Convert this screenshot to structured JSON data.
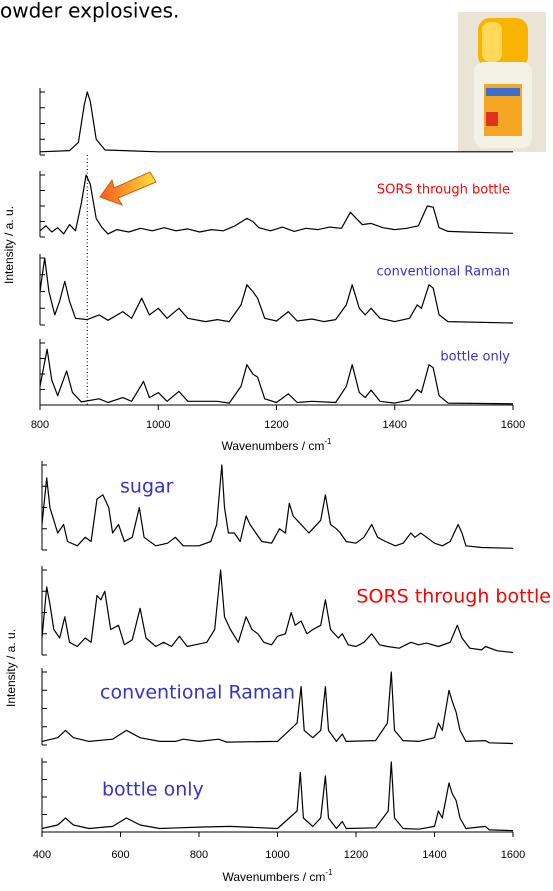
{
  "header": "owder explosives.",
  "chart_data": [
    {
      "type": "line",
      "xlabel": "Wavenumbers / cm",
      "xlabel_superscript": "-1",
      "ylabel": "Intensity / a. u.",
      "xlim": [
        800,
        1600
      ],
      "xticks": [
        800,
        1000,
        1200,
        1400,
        1600
      ],
      "ylim": [
        0,
        1
      ],
      "yticks": [
        0,
        0.25,
        0.5,
        0.75,
        1
      ],
      "marker_x": 880,
      "series": [
        {
          "color": "#000000",
          "x": [
            800,
            850,
            865,
            875,
            880,
            885,
            895,
            910,
            1000,
            1600
          ],
          "values": [
            0.05,
            0.07,
            0.2,
            0.8,
            1.0,
            0.85,
            0.25,
            0.08,
            0.05,
            0.05
          ]
        },
        {
          "name": "SORS through bottle",
          "color": "#000000",
          "label_color": "#ff0000",
          "x": [
            800,
            810,
            820,
            830,
            840,
            850,
            860,
            870,
            878,
            885,
            895,
            905,
            915,
            930,
            950,
            970,
            990,
            1010,
            1030,
            1050,
            1070,
            1090,
            1110,
            1130,
            1150,
            1160,
            1170,
            1190,
            1210,
            1230,
            1250,
            1270,
            1290,
            1310,
            1325,
            1335,
            1345,
            1360,
            1380,
            1400,
            1420,
            1440,
            1455,
            1465,
            1475,
            1490,
            1520,
            1560,
            1600
          ],
          "values": [
            0.1,
            0.18,
            0.08,
            0.15,
            0.05,
            0.2,
            0.1,
            0.55,
            1.0,
            0.85,
            0.3,
            0.15,
            0.05,
            0.12,
            0.08,
            0.14,
            0.1,
            0.15,
            0.1,
            0.13,
            0.08,
            0.12,
            0.1,
            0.18,
            0.3,
            0.25,
            0.15,
            0.1,
            0.16,
            0.09,
            0.14,
            0.12,
            0.16,
            0.14,
            0.4,
            0.3,
            0.2,
            0.22,
            0.15,
            0.12,
            0.14,
            0.18,
            0.5,
            0.48,
            0.15,
            0.09,
            0.08,
            0.07,
            0.06
          ]
        },
        {
          "name": "conventional Raman",
          "color": "#000000",
          "label_color": "#3333cc",
          "x": [
            800,
            808,
            815,
            825,
            833,
            842,
            850,
            860,
            880,
            900,
            915,
            940,
            955,
            972,
            985,
            1000,
            1015,
            1035,
            1050,
            1080,
            1100,
            1120,
            1140,
            1150,
            1160,
            1168,
            1180,
            1200,
            1220,
            1235,
            1260,
            1280,
            1300,
            1318,
            1328,
            1340,
            1350,
            1360,
            1375,
            1400,
            1425,
            1438,
            1445,
            1458,
            1465,
            1475,
            1490,
            1600
          ],
          "values": [
            0.5,
            1.0,
            0.5,
            0.15,
            0.35,
            0.65,
            0.35,
            0.1,
            0.08,
            0.15,
            0.07,
            0.2,
            0.1,
            0.4,
            0.15,
            0.25,
            0.1,
            0.25,
            0.1,
            0.05,
            0.08,
            0.05,
            0.3,
            0.6,
            0.5,
            0.4,
            0.1,
            0.06,
            0.2,
            0.06,
            0.09,
            0.05,
            0.08,
            0.3,
            0.6,
            0.25,
            0.15,
            0.25,
            0.1,
            0.05,
            0.1,
            0.3,
            0.25,
            0.6,
            0.55,
            0.15,
            0.05,
            0.03
          ]
        },
        {
          "name": "bottle only",
          "color": "#000000",
          "label_color": "#3333cc",
          "x": [
            800,
            812,
            820,
            830,
            845,
            855,
            870,
            900,
            915,
            940,
            955,
            975,
            985,
            1000,
            1015,
            1035,
            1050,
            1100,
            1120,
            1140,
            1150,
            1160,
            1168,
            1180,
            1200,
            1220,
            1235,
            1260,
            1300,
            1318,
            1328,
            1340,
            1350,
            1360,
            1375,
            1400,
            1425,
            1438,
            1445,
            1458,
            1465,
            1475,
            1490,
            1600
          ],
          "values": [
            0.3,
            0.9,
            0.4,
            0.15,
            0.55,
            0.2,
            0.05,
            0.1,
            0.04,
            0.12,
            0.06,
            0.38,
            0.12,
            0.2,
            0.06,
            0.22,
            0.06,
            0.06,
            0.03,
            0.3,
            0.65,
            0.5,
            0.45,
            0.1,
            0.04,
            0.18,
            0.04,
            0.06,
            0.04,
            0.3,
            0.65,
            0.2,
            0.12,
            0.24,
            0.06,
            0.03,
            0.08,
            0.25,
            0.2,
            0.65,
            0.6,
            0.15,
            0.03,
            0.02
          ]
        }
      ]
    },
    {
      "type": "line",
      "xlabel": "Wavenumbers / cm",
      "xlabel_superscript": "-1",
      "ylabel": "Intensity / a. u.",
      "xlim": [
        400,
        1600
      ],
      "xticks": [
        400,
        600,
        800,
        1000,
        1200,
        1400,
        1600
      ],
      "ylim": [
        0,
        1
      ],
      "yticks": [
        0,
        0.25,
        0.5,
        0.75,
        1
      ],
      "series": [
        {
          "name": "sugar",
          "color": "#000000",
          "label_color": "#3333cc",
          "x": [
            400,
            412,
            420,
            440,
            455,
            465,
            490,
            510,
            525,
            540,
            555,
            570,
            580,
            595,
            610,
            630,
            648,
            660,
            690,
            720,
            740,
            760,
            800,
            830,
            845,
            858,
            865,
            875,
            890,
            905,
            920,
            930,
            945,
            960,
            985,
            1005,
            1020,
            1030,
            1040,
            1060,
            1080,
            1090,
            1110,
            1122,
            1135,
            1150,
            1160,
            1175,
            1200,
            1220,
            1240,
            1255,
            1275,
            1300,
            1320,
            1340,
            1350,
            1365,
            1380,
            1400,
            1420,
            1440,
            1460,
            1470,
            1480,
            1520,
            1600
          ],
          "values": [
            0.3,
            0.85,
            0.5,
            0.2,
            0.3,
            0.1,
            0.05,
            0.15,
            0.1,
            0.6,
            0.65,
            0.5,
            0.2,
            0.3,
            0.1,
            0.15,
            0.5,
            0.15,
            0.05,
            0.08,
            0.15,
            0.05,
            0.05,
            0.1,
            0.3,
            1.0,
            0.5,
            0.2,
            0.2,
            0.1,
            0.4,
            0.3,
            0.2,
            0.1,
            0.08,
            0.25,
            0.2,
            0.55,
            0.4,
            0.3,
            0.2,
            0.25,
            0.35,
            0.65,
            0.3,
            0.25,
            0.2,
            0.1,
            0.08,
            0.15,
            0.3,
            0.15,
            0.1,
            0.05,
            0.08,
            0.2,
            0.15,
            0.2,
            0.15,
            0.08,
            0.05,
            0.1,
            0.3,
            0.2,
            0.05,
            0.03,
            0.02
          ]
        },
        {
          "name": "SORS through bottle",
          "color": "#000000",
          "label_color": "#ff0000",
          "x": [
            400,
            412,
            420,
            430,
            445,
            458,
            470,
            490,
            510,
            525,
            540,
            550,
            560,
            575,
            595,
            610,
            630,
            650,
            665,
            690,
            710,
            730,
            750,
            770,
            790,
            820,
            840,
            855,
            865,
            880,
            900,
            920,
            935,
            950,
            965,
            985,
            1000,
            1020,
            1035,
            1045,
            1060,
            1075,
            1090,
            1110,
            1122,
            1135,
            1155,
            1165,
            1180,
            1200,
            1220,
            1240,
            1260,
            1280,
            1310,
            1340,
            1360,
            1380,
            1410,
            1440,
            1458,
            1470,
            1490,
            1520,
            1530,
            1560,
            1600
          ],
          "values": [
            0.2,
            0.8,
            0.6,
            0.3,
            0.2,
            0.45,
            0.15,
            0.1,
            0.2,
            0.15,
            0.7,
            0.65,
            0.75,
            0.3,
            0.35,
            0.12,
            0.18,
            0.55,
            0.2,
            0.1,
            0.15,
            0.1,
            0.22,
            0.1,
            0.12,
            0.15,
            0.3,
            1.0,
            0.45,
            0.3,
            0.15,
            0.45,
            0.3,
            0.25,
            0.15,
            0.12,
            0.22,
            0.25,
            0.5,
            0.35,
            0.4,
            0.25,
            0.3,
            0.35,
            0.65,
            0.3,
            0.2,
            0.25,
            0.12,
            0.1,
            0.15,
            0.25,
            0.12,
            0.1,
            0.08,
            0.15,
            0.12,
            0.14,
            0.1,
            0.15,
            0.35,
            0.2,
            0.08,
            0.06,
            0.1,
            0.05,
            0.03
          ]
        },
        {
          "name": "conventional Raman",
          "color": "#000000",
          "label_color": "#3333cc",
          "x": [
            400,
            440,
            460,
            480,
            520,
            580,
            615,
            650,
            700,
            740,
            760,
            800,
            850,
            870,
            1000,
            1050,
            1060,
            1068,
            1090,
            1110,
            1122,
            1130,
            1150,
            1165,
            1175,
            1250,
            1280,
            1290,
            1298,
            1320,
            1360,
            1400,
            1410,
            1420,
            1437,
            1445,
            1455,
            1465,
            1480,
            1530,
            1540,
            1600
          ],
          "values": [
            0.05,
            0.1,
            0.2,
            0.1,
            0.05,
            0.08,
            0.2,
            0.1,
            0.05,
            0.05,
            0.08,
            0.05,
            0.08,
            0.04,
            0.05,
            0.3,
            0.8,
            0.2,
            0.1,
            0.2,
            0.8,
            0.2,
            0.05,
            0.15,
            0.05,
            0.06,
            0.3,
            1.0,
            0.2,
            0.06,
            0.05,
            0.1,
            0.3,
            0.2,
            0.75,
            0.6,
            0.45,
            0.2,
            0.05,
            0.06,
            0.03,
            0.02
          ]
        },
        {
          "name": "bottle only",
          "color": "#000000",
          "label_color": "#3333cc",
          "x": [
            400,
            440,
            460,
            480,
            520,
            580,
            615,
            650,
            700,
            750,
            800,
            880,
            1000,
            1050,
            1058,
            1066,
            1090,
            1110,
            1122,
            1130,
            1150,
            1165,
            1175,
            1250,
            1282,
            1290,
            1298,
            1320,
            1360,
            1400,
            1410,
            1420,
            1437,
            1445,
            1455,
            1465,
            1480,
            1530,
            1540,
            1600
          ],
          "values": [
            0.05,
            0.1,
            0.2,
            0.1,
            0.05,
            0.08,
            0.2,
            0.1,
            0.05,
            0.06,
            0.07,
            0.08,
            0.05,
            0.3,
            0.85,
            0.2,
            0.08,
            0.2,
            0.8,
            0.2,
            0.05,
            0.15,
            0.05,
            0.06,
            0.3,
            1.0,
            0.2,
            0.05,
            0.04,
            0.08,
            0.3,
            0.2,
            0.7,
            0.55,
            0.45,
            0.2,
            0.05,
            0.08,
            0.03,
            0.02
          ]
        }
      ]
    }
  ]
}
